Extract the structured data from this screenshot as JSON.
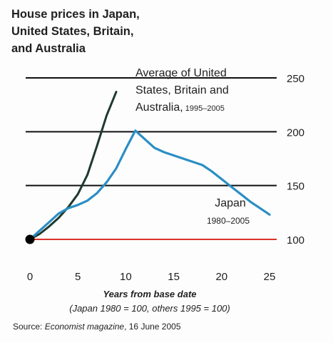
{
  "chart_data": {
    "type": "line",
    "title_lines": [
      "House prices in Japan,",
      "United States, Britain,",
      "and Australia"
    ],
    "xlabel": "Years from base date",
    "xlabel_note": "(Japan 1980 = 100, others 1995 = 100)",
    "source": "Source: Economist magazine, 16 June 2005",
    "xlim": [
      0,
      25
    ],
    "ylim": [
      100,
      250
    ],
    "x_ticks": [
      0,
      5,
      10,
      15,
      20,
      25
    ],
    "y_ticks": [
      100,
      150,
      200,
      250
    ],
    "grid": "horizontal",
    "reference_line": {
      "y": 100,
      "color": "#d9322b"
    },
    "series": [
      {
        "name": "Average of United States, Britain and Australia",
        "name_lines": [
          "Average of United",
          "States, Britain and",
          "Australia,"
        ],
        "period": "1995–2005",
        "color": "#1f3a2e",
        "x": [
          0,
          1,
          2,
          3,
          4,
          5,
          6,
          7,
          8,
          9
        ],
        "values": [
          100,
          105,
          112,
          120,
          130,
          142,
          160,
          187,
          215,
          237
        ]
      },
      {
        "name": "Japan",
        "period": "1980–2005",
        "color": "#2b8ec4",
        "x": [
          0,
          1,
          2,
          3,
          4,
          5,
          6,
          7,
          8,
          9,
          10,
          11,
          12,
          13,
          14,
          15,
          16,
          17,
          18,
          19,
          20,
          21,
          22,
          23,
          24,
          25
        ],
        "values": [
          100,
          108,
          116,
          124,
          129,
          132,
          136,
          143,
          153,
          166,
          184,
          201,
          193,
          185,
          181,
          178,
          175,
          172,
          169,
          163,
          156,
          149,
          142,
          135,
          129,
          123
        ]
      }
    ],
    "colors": {
      "grid": "#111111",
      "axis": "#111111",
      "base_marker": "#000000"
    }
  }
}
